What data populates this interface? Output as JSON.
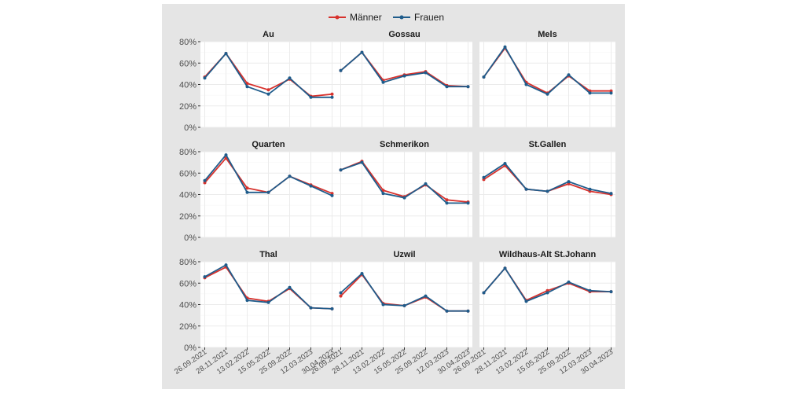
{
  "colors": {
    "background_panel": "#e5e5e5",
    "plot_bg": "#ffffff",
    "grid": "#ebebeb",
    "men": "#d7322d",
    "women": "#1f5c8b"
  },
  "legend": {
    "items": [
      "Männer",
      "Frauen"
    ],
    "placement": "top"
  },
  "chart_data": {
    "type": "line",
    "facets": [
      "Au",
      "Gossau",
      "Mels",
      "Quarten",
      "Schmerikon",
      "St.Gallen",
      "Thal",
      "Uzwil",
      "Wildhaus-Alt St.Johann"
    ],
    "x": [
      "26.09.2021",
      "28.11.2021",
      "13.02.2022",
      "15.05.2022",
      "25.09.2022",
      "12.03.2023",
      "30.04.2023"
    ],
    "y_ticks": [
      "0%",
      "20%",
      "40%",
      "60%",
      "80%"
    ],
    "ylim": [
      0,
      0.8
    ],
    "grid": true,
    "panels": [
      {
        "name": "Au",
        "series": [
          {
            "name": "Männer",
            "values": [
              0.47,
              0.69,
              0.41,
              0.35,
              0.45,
              0.29,
              0.31
            ]
          },
          {
            "name": "Frauen",
            "values": [
              0.46,
              0.69,
              0.38,
              0.31,
              0.46,
              0.28,
              0.28
            ]
          }
        ]
      },
      {
        "name": "Gossau",
        "series": [
          {
            "name": "Männer",
            "values": [
              0.53,
              0.7,
              0.44,
              0.49,
              0.52,
              0.39,
              0.38
            ]
          },
          {
            "name": "Frauen",
            "values": [
              0.53,
              0.7,
              0.42,
              0.48,
              0.51,
              0.38,
              0.38
            ]
          }
        ]
      },
      {
        "name": "Mels",
        "series": [
          {
            "name": "Männer",
            "values": [
              0.47,
              0.74,
              0.42,
              0.32,
              0.48,
              0.34,
              0.34
            ]
          },
          {
            "name": "Frauen",
            "values": [
              0.47,
              0.75,
              0.4,
              0.31,
              0.49,
              0.32,
              0.32
            ]
          }
        ]
      },
      {
        "name": "Quarten",
        "series": [
          {
            "name": "Männer",
            "values": [
              0.51,
              0.74,
              0.46,
              0.42,
              0.57,
              0.49,
              0.41
            ]
          },
          {
            "name": "Frauen",
            "values": [
              0.53,
              0.77,
              0.42,
              0.42,
              0.57,
              0.48,
              0.39
            ]
          }
        ]
      },
      {
        "name": "Schmerikon",
        "series": [
          {
            "name": "Männer",
            "values": [
              0.63,
              0.71,
              0.44,
              0.38,
              0.49,
              0.35,
              0.33
            ]
          },
          {
            "name": "Frauen",
            "values": [
              0.63,
              0.7,
              0.41,
              0.37,
              0.5,
              0.32,
              0.32
            ]
          }
        ]
      },
      {
        "name": "St.Gallen",
        "series": [
          {
            "name": "Männer",
            "values": [
              0.54,
              0.67,
              0.45,
              0.43,
              0.5,
              0.43,
              0.4
            ]
          },
          {
            "name": "Frauen",
            "values": [
              0.56,
              0.69,
              0.45,
              0.43,
              0.52,
              0.45,
              0.41
            ]
          }
        ]
      },
      {
        "name": "Thal",
        "series": [
          {
            "name": "Männer",
            "values": [
              0.65,
              0.75,
              0.46,
              0.43,
              0.55,
              0.37,
              0.36
            ]
          },
          {
            "name": "Frauen",
            "values": [
              0.66,
              0.77,
              0.44,
              0.42,
              0.56,
              0.37,
              0.36
            ]
          }
        ]
      },
      {
        "name": "Uzwil",
        "series": [
          {
            "name": "Männer",
            "values": [
              0.48,
              0.68,
              0.41,
              0.39,
              0.47,
              0.34,
              0.34
            ]
          },
          {
            "name": "Frauen",
            "values": [
              0.51,
              0.69,
              0.4,
              0.39,
              0.48,
              0.34,
              0.34
            ]
          }
        ]
      },
      {
        "name": "Wildhaus-Alt St.Johann",
        "series": [
          {
            "name": "Männer",
            "values": [
              0.51,
              0.74,
              0.44,
              0.53,
              0.6,
              0.52,
              0.52
            ]
          },
          {
            "name": "Frauen",
            "values": [
              0.51,
              0.74,
              0.43,
              0.51,
              0.61,
              0.53,
              0.52
            ]
          }
        ]
      }
    ]
  }
}
